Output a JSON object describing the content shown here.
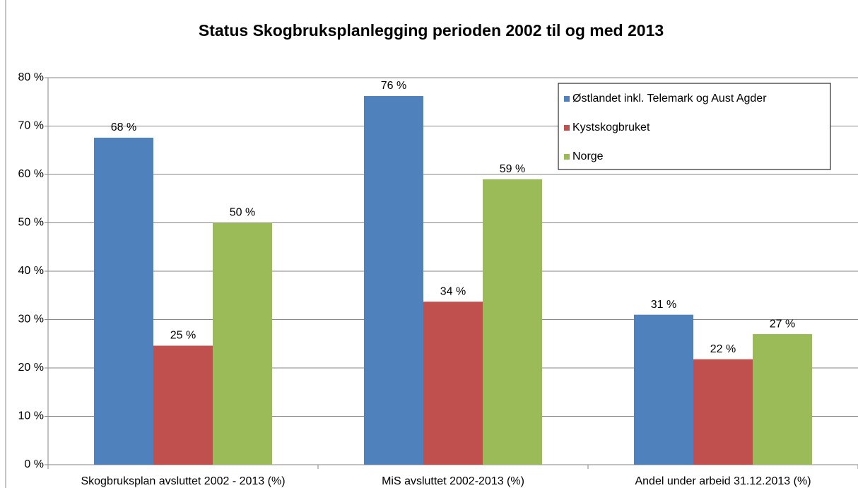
{
  "chart_data": {
    "type": "bar",
    "title": "Status Skogbruksplanlegging perioden 2002 til og med 2013",
    "categories": [
      "Skogbruksplan avsluttet 2002 - 2013 (%)",
      "MiS avsluttet 2002-2013 (%)",
      "Andel under arbeid 31.12.2013 (%)"
    ],
    "series": [
      {
        "name": "Østlandet inkl. Telemark og Aust Agder",
        "color": "#4f81bd",
        "values": [
          67.6,
          76.2,
          31
        ],
        "value_labels": [
          "68 %",
          "76 %",
          "31 %"
        ]
      },
      {
        "name": "Kystskogbruket",
        "color": "#c0504d",
        "values": [
          24.6,
          33.7,
          21.8
        ],
        "value_labels": [
          "25 %",
          "34 %",
          "22 %"
        ]
      },
      {
        "name": "Norge",
        "color": "#9bbb59",
        "values": [
          50,
          59,
          27
        ],
        "value_labels": [
          "50 %",
          "59 %",
          "27 %"
        ]
      }
    ],
    "ylim": [
      0,
      80
    ],
    "yticks": [
      {
        "value": 0,
        "label": "0 %"
      },
      {
        "value": 10,
        "label": "10 %"
      },
      {
        "value": 20,
        "label": "20 %"
      },
      {
        "value": 30,
        "label": "30 %"
      },
      {
        "value": 40,
        "label": "40 %"
      },
      {
        "value": 50,
        "label": "50 %"
      },
      {
        "value": 60,
        "label": "60 %"
      },
      {
        "value": 70,
        "label": "70 %"
      },
      {
        "value": 80,
        "label": "80 %"
      }
    ],
    "grid": true,
    "legend": "upper right"
  }
}
